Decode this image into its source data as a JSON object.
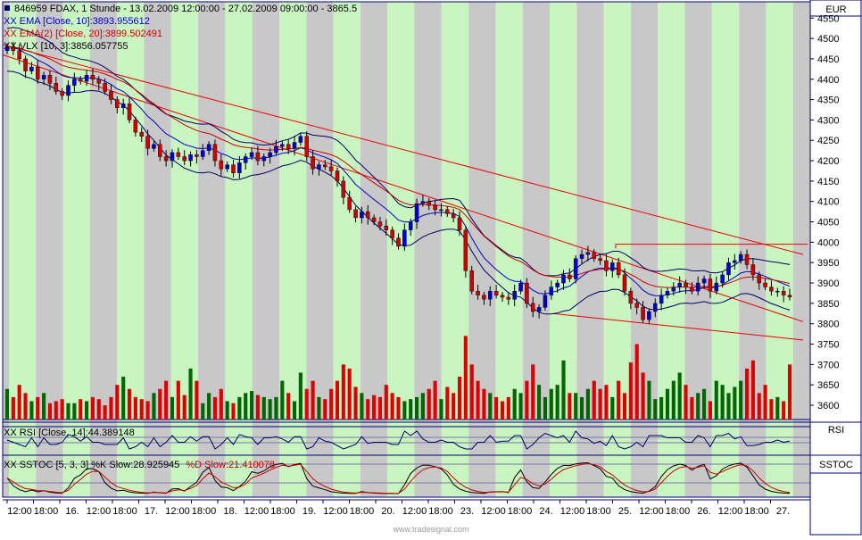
{
  "header": {
    "title": "846959  FDAX, 1 Stunde - 13.02.2009 12:00:00 - 27.02.2009 09:00:00 - 3865.5",
    "legend": [
      {
        "text": "XX EMA [Close, 10]:3893.955612",
        "color": "#0000cc"
      },
      {
        "text": "XX EMA(2) [Close, 20]:3899.502491",
        "color": "#cc0000"
      },
      {
        "text": "XX VLX [10, 3]:3856.057755",
        "color": "#000000"
      }
    ]
  },
  "panels": {
    "price_unit": "EUR",
    "rsi_label": "RSI",
    "rsi_legend": "XX RSI [Close, 14]:44.389148",
    "stoc_label": "SSTOC",
    "stoc_legend_a": "XX SSTOC [5, 3, 3] %K Slow:28.925945",
    "stoc_legend_b": "%D Slow:21.410078"
  },
  "footer": {
    "watermark": "www.tradesignal.com"
  },
  "colors": {
    "up": "#0000cc",
    "down": "#cc0000",
    "vol_up": "#006600",
    "vol_down": "#dd0000",
    "band_a": "#c8f5c0",
    "band_b": "#c8c8c8"
  },
  "chart_data": {
    "type": "candlestick",
    "yaxis_ticks": [
      3600,
      3650,
      3700,
      3750,
      3800,
      3850,
      3900,
      3950,
      4000,
      4050,
      4100,
      4150,
      4200,
      4250,
      4300,
      4350,
      4400,
      4450,
      4500,
      4550
    ],
    "ylim": [
      3565,
      4590
    ],
    "x_labels": [
      "12:00",
      "18:00",
      "16.",
      "12:00",
      "18:00",
      "17.",
      "12:00",
      "18:00",
      "18.",
      "12:00",
      "18:00",
      "19.",
      "12:00",
      "18:00",
      "20.",
      "12:00",
      "18:00",
      "23.",
      "12:00",
      "18:00",
      "24.",
      "12:00",
      "18:00",
      "25.",
      "12:00",
      "18:00",
      "26.",
      "12:00",
      "18:00",
      "27."
    ],
    "closes": [
      4480,
      4470,
      4450,
      4420,
      4430,
      4400,
      4410,
      4390,
      4370,
      4360,
      4385,
      4400,
      4395,
      4410,
      4400,
      4390,
      4370,
      4350,
      4330,
      4340,
      4300,
      4270,
      4260,
      4230,
      4240,
      4210,
      4200,
      4220,
      4210,
      4200,
      4215,
      4210,
      4225,
      4240,
      4200,
      4180,
      4190,
      4170,
      4195,
      4210,
      4220,
      4200,
      4210,
      4220,
      4235,
      4240,
      4230,
      4245,
      4260,
      4210,
      4180,
      4190,
      4185,
      4175,
      4150,
      4110,
      4080,
      4060,
      4075,
      4060,
      4050,
      4040,
      4030,
      4010,
      3990,
      4030,
      4050,
      4095,
      4100,
      4090,
      4080,
      4080,
      4070,
      4060,
      4030,
      3930,
      3880,
      3870,
      3860,
      3880,
      3870,
      3865,
      3860,
      3880,
      3900,
      3850,
      3830,
      3840,
      3870,
      3890,
      3900,
      3920,
      3910,
      3960,
      3970,
      3975,
      3960,
      3955,
      3930,
      3950,
      3920,
      3880,
      3850,
      3840,
      3810,
      3830,
      3850,
      3870,
      3880,
      3890,
      3900,
      3890,
      3880,
      3900,
      3910,
      3880,
      3900,
      3920,
      3950,
      3955,
      3970,
      3945,
      3920,
      3900,
      3890,
      3880,
      3880,
      3870,
      3865.5
    ],
    "volumes": [
      3640,
      3620,
      3650,
      3630,
      3610,
      3620,
      3630,
      3605,
      3610,
      3615,
      3605,
      3605,
      3615,
      3610,
      3620,
      3615,
      3600,
      3620,
      3650,
      3670,
      3640,
      3620,
      3615,
      3610,
      3630,
      3640,
      3660,
      3620,
      3660,
      3625,
      3690,
      3660,
      3605,
      3630,
      3620,
      3640,
      3610,
      3605,
      3620,
      3630,
      3635,
      3625,
      3620,
      3615,
      3620,
      3660,
      3630,
      3610,
      3680,
      3640,
      3660,
      3620,
      3615,
      3640,
      3660,
      3700,
      3690,
      3645,
      3630,
      3615,
      3625,
      3620,
      3650,
      3630,
      3620,
      3610,
      3615,
      3620,
      3630,
      3640,
      3660,
      3615,
      3645,
      3630,
      3670,
      3770,
      3700,
      3660,
      3640,
      3630,
      3620,
      3610,
      3620,
      3640,
      3630,
      3660,
      3700,
      3650,
      3620,
      3640,
      3650,
      3710,
      3630,
      3630,
      3620,
      3640,
      3660,
      3640,
      3650,
      3620,
      3660,
      3630,
      3705,
      3750,
      3680,
      3660,
      3615,
      3620,
      3640,
      3660,
      3680,
      3650,
      3620,
      3630,
      3640,
      3610,
      3660,
      3650,
      3630,
      3645,
      3660,
      3690,
      3710,
      3630,
      3650,
      3615,
      3620,
      3610,
      3700
    ]
  }
}
